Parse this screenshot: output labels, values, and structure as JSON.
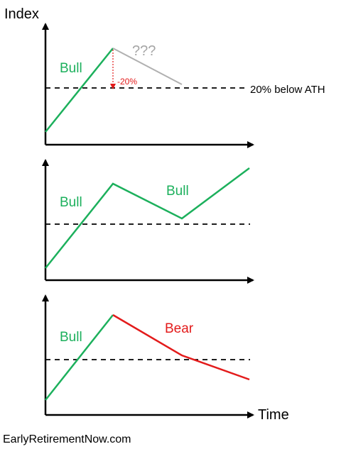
{
  "labels": {
    "y_axis": "Index",
    "x_axis": "Time",
    "question": "???",
    "drop": "-20%",
    "threshold": "20% below ATH",
    "bull": "Bull",
    "bear": "Bear",
    "footer": "EarlyRetirementNow.com"
  },
  "colors": {
    "bull": "#1cb05c",
    "bear": "#e31b1b",
    "unknown": "#b0b0b0",
    "question_text": "#a6a6a6",
    "drop_arrow": "#e31b1b",
    "axis": "#000000",
    "threshold_line": "#000000"
  },
  "panels": [
    {
      "id": "uncertain",
      "segments": [
        {
          "trend": "bull",
          "label": "Bull"
        },
        {
          "trend": "unknown",
          "label": "???"
        }
      ],
      "shows_threshold_label": true,
      "shows_drop_marker": true
    },
    {
      "id": "correction",
      "segments": [
        {
          "trend": "bull",
          "label": "Bull"
        },
        {
          "trend": "bull",
          "label": "Bull"
        }
      ],
      "shows_threshold_label": false,
      "shows_drop_marker": false
    },
    {
      "id": "bear-market",
      "segments": [
        {
          "trend": "bull",
          "label": "Bull"
        },
        {
          "trend": "bear",
          "label": "Bear"
        }
      ],
      "shows_threshold_label": false,
      "shows_drop_marker": false
    }
  ]
}
